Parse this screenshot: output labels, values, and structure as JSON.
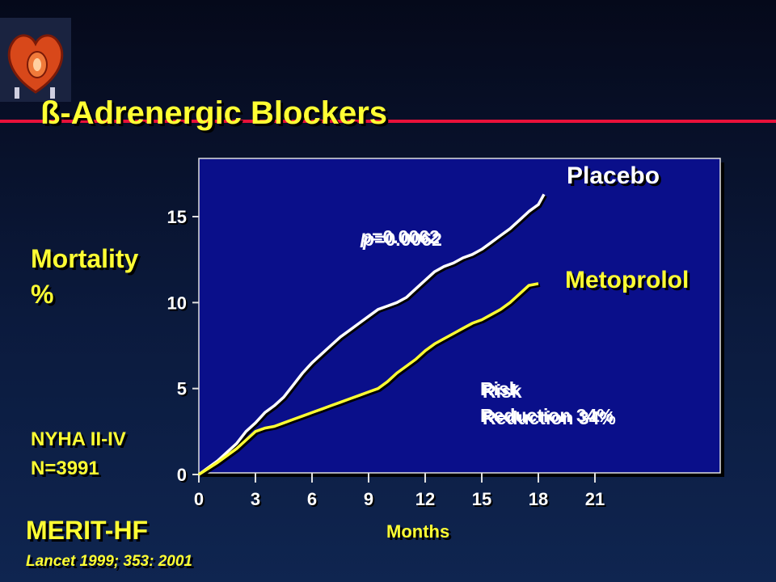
{
  "slide": {
    "title": "ß-Adrenergic Blockers",
    "study": "MERIT-HF",
    "reference": "Lancet 1999; 353: 2001",
    "population_line1": "NYHA II-IV",
    "population_line2": "N=3991"
  },
  "colors": {
    "title": "#ffff33",
    "accent_rule": "#e8113a",
    "plot_bg": "#0a0f8a",
    "placebo": "#ffffff",
    "metoprolol": "#ffff33"
  },
  "icons": {
    "logo": "heart-icon"
  },
  "chart_data": {
    "type": "line",
    "xlabel": "Months",
    "ylabel_line1": "Mortality",
    "ylabel_line2": "%",
    "xlim": [
      0,
      21
    ],
    "ylim": [
      0,
      15
    ],
    "xticks": [
      0,
      3,
      6,
      9,
      12,
      15,
      18,
      21
    ],
    "yticks": [
      0,
      5,
      10,
      15
    ],
    "grid": false,
    "annotation_p_italic": "p",
    "annotation_p_value": "=0.0062",
    "annotation_risk_line1": "Risk",
    "annotation_risk_line2": "Reduction 34%",
    "series": [
      {
        "name": "Placebo",
        "x": [
          0,
          1,
          2,
          2.5,
          3,
          3.5,
          4,
          4.5,
          5,
          5.5,
          6,
          6.5,
          7,
          7.5,
          8,
          8.5,
          9,
          9.5,
          10,
          10.5,
          11,
          11.5,
          12,
          12.5,
          13,
          13.5,
          14,
          14.5,
          15,
          15.5,
          16,
          16.5,
          17,
          17.5,
          18,
          18.3
        ],
        "y": [
          0,
          0.8,
          1.8,
          2.5,
          3.0,
          3.6,
          4.0,
          4.5,
          5.2,
          5.9,
          6.5,
          7.0,
          7.5,
          8.0,
          8.4,
          8.8,
          9.2,
          9.6,
          9.8,
          10.0,
          10.3,
          10.8,
          11.3,
          11.8,
          12.1,
          12.3,
          12.6,
          12.8,
          13.1,
          13.5,
          13.9,
          14.3,
          14.8,
          15.3,
          15.7,
          16.3
        ]
      },
      {
        "name": "Metoprolol",
        "x": [
          0,
          1,
          2,
          2.5,
          3,
          3.5,
          4,
          4.5,
          5,
          5.5,
          6,
          6.5,
          7,
          7.5,
          8,
          8.5,
          9,
          9.5,
          10,
          10.5,
          11,
          11.5,
          12,
          12.5,
          13,
          13.5,
          14,
          14.5,
          15,
          15.5,
          16,
          16.5,
          17,
          17.5,
          18
        ],
        "y": [
          0,
          0.7,
          1.5,
          2.0,
          2.5,
          2.7,
          2.8,
          3.0,
          3.2,
          3.4,
          3.6,
          3.8,
          4.0,
          4.2,
          4.4,
          4.6,
          4.8,
          5.0,
          5.4,
          5.9,
          6.3,
          6.7,
          7.2,
          7.6,
          7.9,
          8.2,
          8.5,
          8.8,
          9.0,
          9.3,
          9.6,
          10.0,
          10.5,
          11.0,
          11.1
        ]
      }
    ]
  }
}
